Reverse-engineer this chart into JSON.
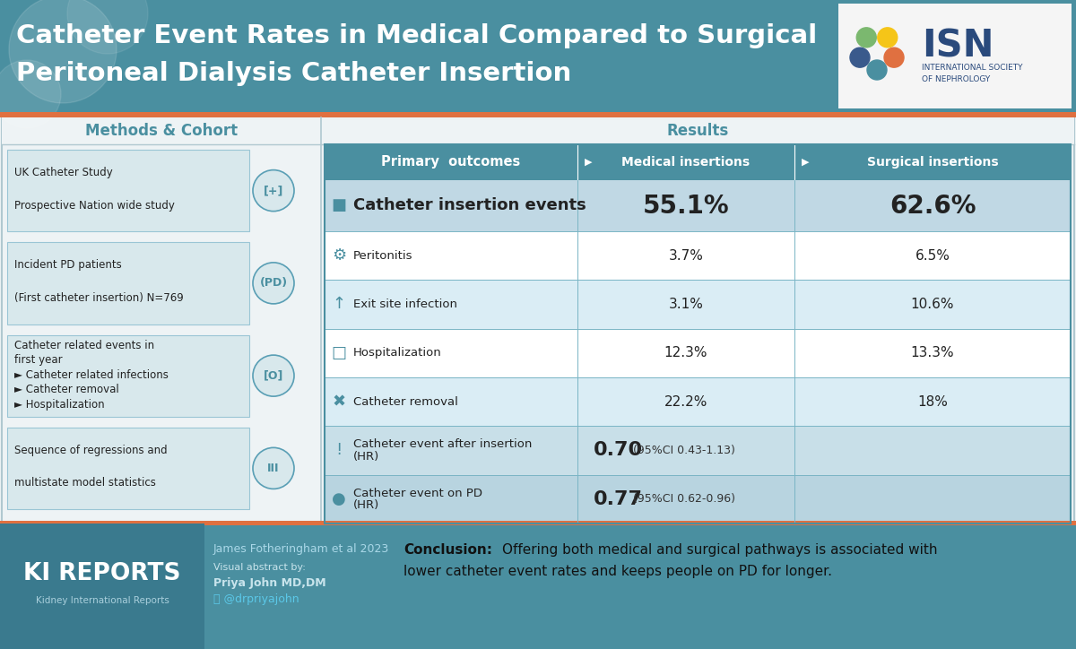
{
  "title_line1": "Catheter Event Rates in Medical Compared to Surgical",
  "title_line2": "Peritoneal Dialysis Catheter Insertion",
  "title_bg_color": "#4a8fa0",
  "orange_accent": "#e07040",
  "methods_title": "Methods & Cohort",
  "results_title": "Results",
  "section_title_color": "#4a8fa0",
  "methods_box_color": "#d8e8ec",
  "methods_items": [
    "UK Catheter Study\nProspective Nation wide study",
    "Incident PD patients\n(First catheter insertion) N=769",
    "Catheter related events in\nfirst year\n> Catheter related infections\n> Catheter removal\n> Hospitalization",
    "Sequence of regressions and\nmultistate model statistics"
  ],
  "table_header_color": "#4a8fa0",
  "table_border_color": "#7ab5c5",
  "table_rows": [
    {
      "label": "Catheter insertion events",
      "medical": "55.1%",
      "surgical": "62.6%",
      "large": true,
      "span": false
    },
    {
      "label": "Peritonitis",
      "medical": "3.7%",
      "surgical": "6.5%",
      "large": false,
      "span": false
    },
    {
      "label": "Exit site infection",
      "medical": "3.1%",
      "surgical": "10.6%",
      "large": false,
      "span": false
    },
    {
      "label": "Hospitalization",
      "medical": "12.3%",
      "surgical": "13.3%",
      "large": false,
      "span": false
    },
    {
      "label": "Catheter removal",
      "medical": "22.2%",
      "surgical": "18%",
      "large": false,
      "span": false
    },
    {
      "label": "Catheter event after insertion\n(HR)",
      "medical": "0.70",
      "ci": "(95%CI 0.43-1.13)",
      "surgical": "",
      "large": false,
      "span": true
    },
    {
      "label": "Catheter event on PD\n(HR)",
      "medical": "0.77",
      "ci": "(95%CI 0.62-0.96)",
      "surgical": "",
      "large": false,
      "span": true
    }
  ],
  "row_colors": [
    "#c0d8e4",
    "#ffffff",
    "#daedf5",
    "#ffffff",
    "#daedf5",
    "#c8dfe8",
    "#b8d4e0"
  ],
  "footer_bg": "#4a8fa0",
  "footer_dark": "#3a7a8e",
  "bg_color": "#e8eef0",
  "isn_colors": [
    "#4a8fa0",
    "#e07040",
    "#f5c518",
    "#7bb86f",
    "#3a5a8c"
  ]
}
